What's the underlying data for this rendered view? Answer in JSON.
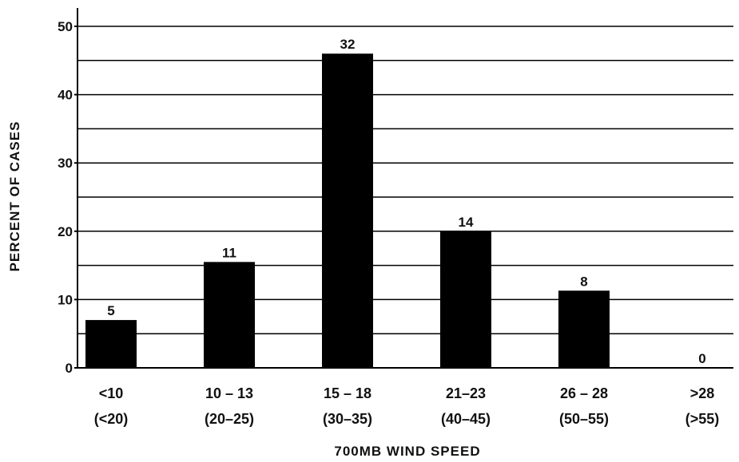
{
  "chart_data": {
    "type": "bar",
    "xlabel": "700MB WIND SPEED",
    "ylabel": "PERCENT OF CASES",
    "ylim": [
      0,
      50
    ],
    "yticks": [
      "0",
      "10",
      "20",
      "30",
      "40",
      "50"
    ],
    "grid": true,
    "categories": [
      {
        "line1": "<10",
        "line2": "(<20)"
      },
      {
        "line1": "10 – 13",
        "line2": "(20–25)"
      },
      {
        "line1": "15 – 18",
        "line2": "(30–35)"
      },
      {
        "line1": "21–23",
        "line2": "(40–45)"
      },
      {
        "line1": "26 – 28",
        "line2": "(50–55)"
      },
      {
        "line1": ">28",
        "line2": "(>55)"
      }
    ],
    "values": [
      7,
      15.5,
      46,
      20,
      11.3,
      0
    ],
    "data_labels": [
      "5",
      "11",
      "32",
      "14",
      "8",
      "0"
    ],
    "bar_color": "#000000"
  }
}
